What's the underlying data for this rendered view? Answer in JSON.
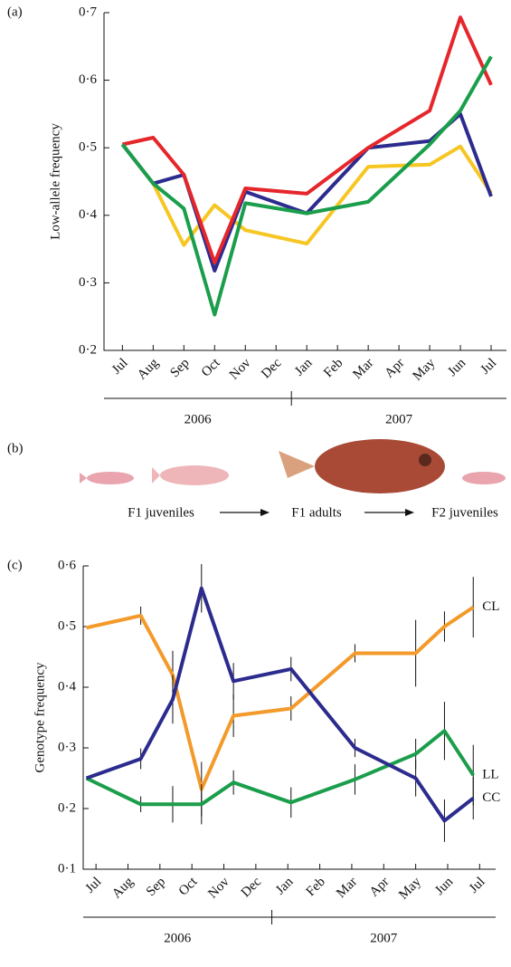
{
  "chart_data": [
    {
      "type": "line",
      "panel_label": "(a)",
      "ylabel": "Low-allele frequency",
      "xlim": [
        -0.6,
        12.5
      ],
      "ylim": [
        0.2,
        0.7
      ],
      "xticks": [
        {
          "value": 0,
          "label": "Jul"
        },
        {
          "value": 1,
          "label": "Aug"
        },
        {
          "value": 2,
          "label": "Sep"
        },
        {
          "value": 3,
          "label": "Oct"
        },
        {
          "value": 4,
          "label": "Nov"
        },
        {
          "value": 5,
          "label": "Dec"
        },
        {
          "value": 6,
          "label": "Jan"
        },
        {
          "value": 7,
          "label": "Feb"
        },
        {
          "value": 8,
          "label": "Mar"
        },
        {
          "value": 9,
          "label": "Apr"
        },
        {
          "value": 10,
          "label": "May"
        },
        {
          "value": 11,
          "label": "Jun"
        },
        {
          "value": 12,
          "label": "Jul"
        }
      ],
      "yticks": [
        {
          "value": 0.2,
          "label": "0·2"
        },
        {
          "value": 0.3,
          "label": "0·3"
        },
        {
          "value": 0.4,
          "label": "0·4"
        },
        {
          "value": 0.5,
          "label": "0·5"
        },
        {
          "value": 0.6,
          "label": "0·6"
        },
        {
          "value": 0.7,
          "label": "0·7"
        }
      ],
      "period_labels": [
        "2006",
        "2007"
      ],
      "x": [
        0,
        1,
        2,
        3,
        4,
        6,
        8,
        10,
        11,
        12
      ],
      "series": [
        {
          "color": "#f6c623",
          "values": [
            0.505,
            0.447,
            0.356,
            0.415,
            0.378,
            0.358,
            0.472,
            0.475,
            0.502,
            0.433
          ]
        },
        {
          "color": "#2c2b8e",
          "values": [
            0.505,
            0.447,
            0.46,
            0.318,
            0.435,
            0.403,
            0.5,
            0.51,
            0.55,
            0.428
          ]
        },
        {
          "color": "#e5262b",
          "values": [
            0.505,
            0.515,
            0.46,
            0.33,
            0.44,
            0.432,
            0.5,
            0.555,
            0.693,
            0.593
          ]
        },
        {
          "color": "#1a9e4b",
          "values": [
            0.505,
            0.447,
            0.41,
            0.253,
            0.418,
            0.403,
            0.42,
            0.505,
            0.555,
            0.635
          ]
        }
      ]
    },
    {
      "type": "line",
      "panel_label": "(c)",
      "ylabel": "Genotype frequency",
      "xlim": [
        -0.1,
        12.8
      ],
      "ylim": [
        0.1,
        0.6
      ],
      "xticks": [
        {
          "value": 0.3,
          "label": "Jul"
        },
        {
          "value": 1.3,
          "label": "Aug"
        },
        {
          "value": 2.3,
          "label": "Sep"
        },
        {
          "value": 3.3,
          "label": "Oct"
        },
        {
          "value": 4.3,
          "label": "Nov"
        },
        {
          "value": 5.3,
          "label": "Dec"
        },
        {
          "value": 6.3,
          "label": "Jan"
        },
        {
          "value": 7.3,
          "label": "Feb"
        },
        {
          "value": 8.3,
          "label": "Mar"
        },
        {
          "value": 9.3,
          "label": "Apr"
        },
        {
          "value": 10.3,
          "label": "May"
        },
        {
          "value": 11.3,
          "label": "Jun"
        },
        {
          "value": 12.3,
          "label": "Jul"
        }
      ],
      "yticks": [
        {
          "value": 0.1,
          "label": "0·1"
        },
        {
          "value": 0.2,
          "label": "0·2"
        },
        {
          "value": 0.3,
          "label": "0·3"
        },
        {
          "value": 0.4,
          "label": "0·4"
        },
        {
          "value": 0.5,
          "label": "0·5"
        },
        {
          "value": 0.6,
          "label": "0·6"
        }
      ],
      "period_labels": [
        "2006",
        "2007"
      ],
      "x": [
        0,
        1.7,
        2.7,
        3.6,
        4.6,
        6.4,
        8.4,
        10.3,
        11.2,
        12.1
      ],
      "series": [
        {
          "name": "CL",
          "color": "#f39a2b",
          "values": [
            0.498,
            0.518,
            0.42,
            0.232,
            0.353,
            0.365,
            0.456,
            0.456,
            0.5,
            0.532
          ],
          "errors": [
            null,
            0.015,
            0.04,
            0.045,
            0.035,
            0.02,
            0.015,
            0.055,
            0.025,
            0.05
          ]
        },
        {
          "name": "LL",
          "color": "#1a9e4b",
          "values": [
            0.25,
            0.207,
            0.207,
            0.207,
            0.243,
            0.21,
            0.248,
            0.29,
            0.328,
            0.255
          ],
          "errors": [
            null,
            0.013,
            0.03,
            0.033,
            0.02,
            0.025,
            0.025,
            0.025,
            0.048,
            0.05
          ]
        },
        {
          "name": "CC",
          "color": "#2c2b8e",
          "values": [
            0.25,
            0.282,
            0.38,
            0.563,
            0.41,
            0.43,
            0.3,
            0.25,
            0.18,
            0.217
          ],
          "errors": [
            null,
            0.017,
            0.04,
            0.04,
            0.03,
            0.02,
            0.015,
            0.03,
            0.035,
            0.035
          ]
        }
      ]
    }
  ],
  "panel_b": {
    "panel_label": "(b)",
    "stages": [
      "F1 juveniles",
      "F1 adults",
      "F2 juveniles"
    ]
  }
}
